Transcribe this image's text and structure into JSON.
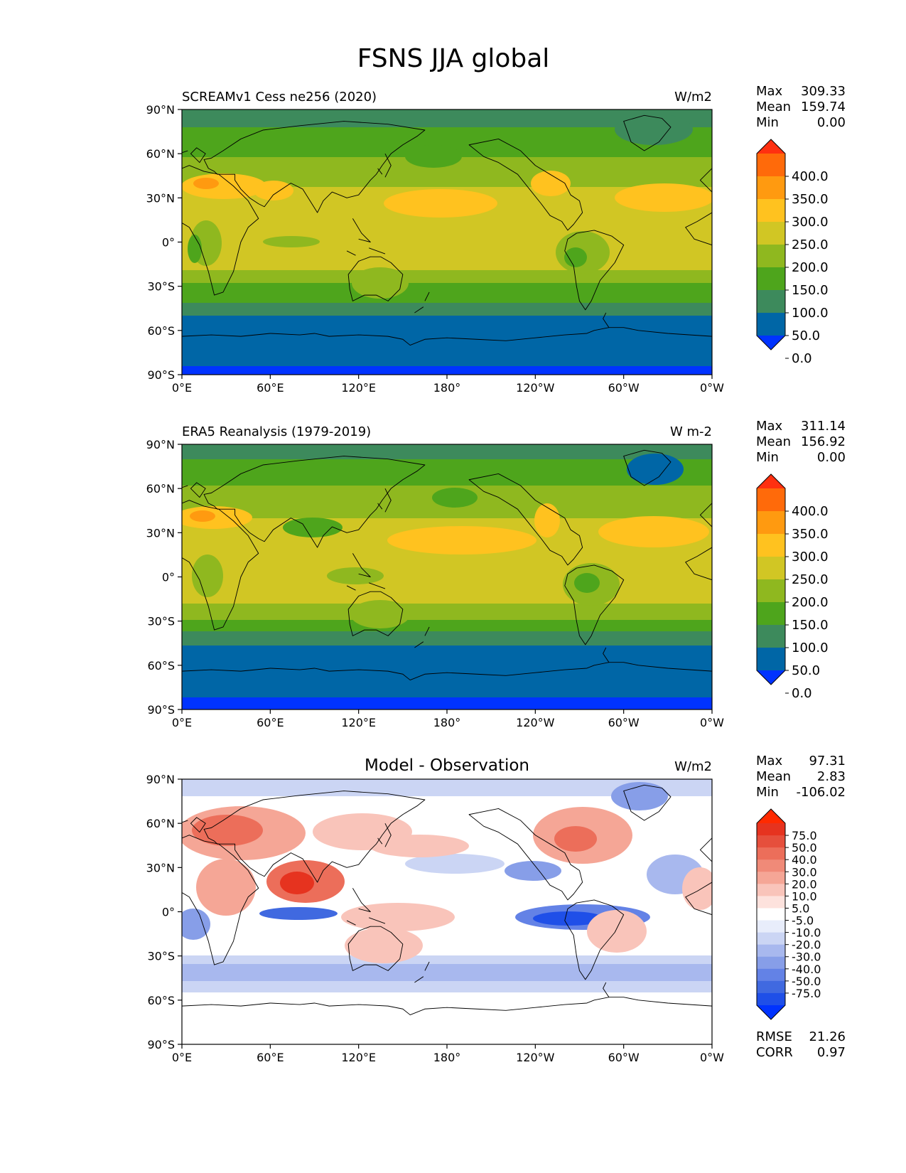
{
  "figure_title": "FSNS JJA global",
  "colors": {
    "abs_levels": [
      "#0033ff",
      "#0066a6",
      "#3d8a5c",
      "#4ea51c",
      "#8fb81f",
      "#d1c624",
      "#ffc21f",
      "#ff9a10",
      "#ff6a0a",
      "#ff3010"
    ],
    "diff_levels": [
      "#0033ff",
      "#1f4fe8",
      "#4069e0",
      "#6382e6",
      "#879ee8",
      "#a8b8ee",
      "#cbd5f4",
      "#e8edfb",
      "#ffffff",
      "#fde2dd",
      "#f9c4ba",
      "#f5a696",
      "#f08a78",
      "#ec6e5a",
      "#e64f3c",
      "#e6331f",
      "#ff2a00"
    ],
    "coast": "#000000"
  },
  "x_ticks": [
    "0°E",
    "60°E",
    "120°E",
    "180°",
    "120°W",
    "60°W",
    "0°W"
  ],
  "y_ticks": [
    "90°N",
    "60°N",
    "30°N",
    "0°",
    "30°S",
    "60°S",
    "90°S"
  ],
  "panels": [
    {
      "id": "model",
      "left_title": "SCREAMv1 Cess ne256 (2020)",
      "center_title": "",
      "units": "W/m2",
      "stats": [
        {
          "label": "Max",
          "value": "309.33"
        },
        {
          "label": "Mean",
          "value": "159.74"
        },
        {
          "label": "Min",
          "value": "0.00"
        }
      ],
      "extra_stats": [],
      "colorbar_levels": [
        "400.0",
        "350.0",
        "300.0",
        "250.0",
        "200.0",
        "150.0",
        "100.0",
        "50.0",
        "0.0"
      ]
    },
    {
      "id": "obs",
      "left_title": "ERA5 Reanalysis (1979-2019)",
      "center_title": "",
      "units": "W m-2",
      "stats": [
        {
          "label": "Max",
          "value": "311.14"
        },
        {
          "label": "Mean",
          "value": "156.92"
        },
        {
          "label": "Min",
          "value": "0.00"
        }
      ],
      "extra_stats": [],
      "colorbar_levels": [
        "400.0",
        "350.0",
        "300.0",
        "250.0",
        "200.0",
        "150.0",
        "100.0",
        "50.0",
        "0.0"
      ]
    },
    {
      "id": "diff",
      "left_title": "",
      "center_title": "Model - Observation",
      "units": "W/m2",
      "stats": [
        {
          "label": "Max",
          "value": "97.31"
        },
        {
          "label": "Mean",
          "value": "2.83"
        },
        {
          "label": "Min",
          "value": "-106.02"
        }
      ],
      "extra_stats": [
        {
          "label": "RMSE",
          "value": "21.26"
        },
        {
          "label": "CORR",
          "value": "0.97"
        }
      ],
      "colorbar_levels": [
        "75.0",
        "50.0",
        "40.0",
        "30.0",
        "20.0",
        "10.0",
        "5.0",
        "-5.0",
        "-10.0",
        "-20.0",
        "-30.0",
        "-40.0",
        "-50.0",
        "-75.0"
      ]
    }
  ],
  "chart_data": [
    {
      "type": "heatmap",
      "title": "SCREAMv1 Cess ne256 (2020)",
      "variable": "FSNS JJA global",
      "units": "W/m2",
      "x": "longitude",
      "y": "latitude",
      "xlim": [
        0,
        360
      ],
      "ylim": [
        -90,
        90
      ],
      "levels": [
        0,
        50,
        100,
        150,
        200,
        250,
        300,
        350,
        400
      ],
      "lat_bands": [
        {
          "lat_range": [
            78,
            90
          ],
          "approx_value": 100
        },
        {
          "lat_range": [
            58,
            78
          ],
          "approx_value": 160
        },
        {
          "lat_range": [
            38,
            58
          ],
          "approx_value": 200
        },
        {
          "lat_range": [
            10,
            38
          ],
          "approx_value": 250
        },
        {
          "lat_range": [
            -10,
            10
          ],
          "approx_value": 210
        },
        {
          "lat_range": [
            -25,
            -10
          ],
          "approx_value": 200
        },
        {
          "lat_range": [
            -40,
            -25
          ],
          "approx_value": 150
        },
        {
          "lat_range": [
            -48,
            -40
          ],
          "approx_value": 100
        },
        {
          "lat_range": [
            -84,
            -48
          ],
          "approx_value": 30
        },
        {
          "lat_range": [
            -90,
            -84
          ],
          "approx_value": 0
        }
      ],
      "max": 309.33,
      "mean": 159.74,
      "min": 0.0
    },
    {
      "type": "heatmap",
      "title": "ERA5 Reanalysis (1979-2019)",
      "variable": "FSNS JJA global",
      "units": "W m-2",
      "x": "longitude",
      "y": "latitude",
      "xlim": [
        0,
        360
      ],
      "ylim": [
        -90,
        90
      ],
      "levels": [
        0,
        50,
        100,
        150,
        200,
        250,
        300,
        350,
        400
      ],
      "lat_bands": [
        {
          "lat_range": [
            80,
            90
          ],
          "approx_value": 100
        },
        {
          "lat_range": [
            62,
            80
          ],
          "approx_value": 150
        },
        {
          "lat_range": [
            40,
            62
          ],
          "approx_value": 180
        },
        {
          "lat_range": [
            12,
            40
          ],
          "approx_value": 240
        },
        {
          "lat_range": [
            -12,
            12
          ],
          "approx_value": 210
        },
        {
          "lat_range": [
            -28,
            -12
          ],
          "approx_value": 200
        },
        {
          "lat_range": [
            -38,
            -28
          ],
          "approx_value": 150
        },
        {
          "lat_range": [
            -46,
            -38
          ],
          "approx_value": 100
        },
        {
          "lat_range": [
            -83,
            -46
          ],
          "approx_value": 30
        },
        {
          "lat_range": [
            -90,
            -83
          ],
          "approx_value": 0
        }
      ],
      "max": 311.14,
      "mean": 156.92,
      "min": 0.0
    },
    {
      "type": "heatmap",
      "title": "Model - Observation",
      "variable": "FSNS JJA global",
      "units": "W/m2",
      "x": "longitude",
      "y": "latitude",
      "xlim": [
        0,
        360
      ],
      "ylim": [
        -90,
        90
      ],
      "levels": [
        -75,
        -50,
        -40,
        -30,
        -20,
        -10,
        -5,
        5,
        10,
        20,
        30,
        40,
        50,
        75
      ],
      "notable_regions": [
        {
          "region": "Europe / Mediterranean",
          "lon": 20,
          "lat": 45,
          "approx_value": 45
        },
        {
          "region": "Indian subcontinent / Bay of Bengal",
          "lon": 85,
          "lat": 18,
          "approx_value": 60
        },
        {
          "region": "Equatorial Indian Ocean",
          "lon": 70,
          "lat": 0,
          "approx_value": -55
        },
        {
          "region": "Eastern equatorial Pacific",
          "lon": 250,
          "lat": 0,
          "approx_value": -60
        },
        {
          "region": "North America",
          "lon": 265,
          "lat": 45,
          "approx_value": 45
        },
        {
          "region": "Southern Ocean",
          "lon": 180,
          "lat": -45,
          "approx_value": -20
        },
        {
          "region": "Antarctica",
          "lon": 180,
          "lat": -75,
          "approx_value": 0
        }
      ],
      "max": 97.31,
      "mean": 2.83,
      "min": -106.02,
      "rmse": 21.26,
      "corr": 0.97
    }
  ]
}
